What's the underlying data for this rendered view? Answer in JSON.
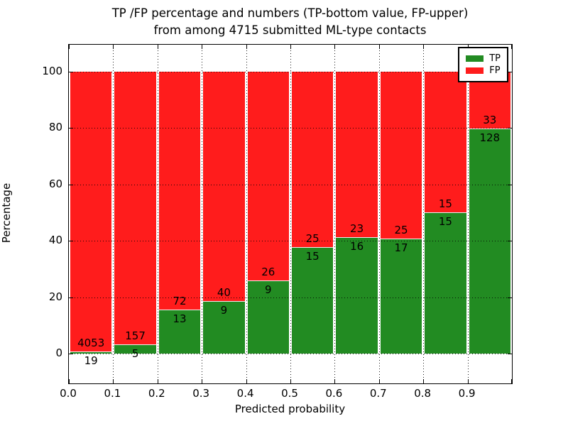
{
  "chart": {
    "title_line1": "TP /FP percentage and numbers (TP-bottom value, FP-upper)",
    "title_line2": "from among 4715 submitted ML-type contacts",
    "xlabel": "Predicted probability",
    "ylabel": "Percentage"
  },
  "chart_data": {
    "type": "bar",
    "stacked": true,
    "normalization": "each bin stacked to 100 percent; counts shown as labels (TP bottom, FP upper)",
    "title": "TP /FP percentage and numbers (TP-bottom value, FP-upper)\nfrom among 4715 submitted ML-type contacts",
    "xlabel": "Predicted probability",
    "ylabel": "Percentage",
    "bin_edges": [
      0.0,
      0.1,
      0.2,
      0.3,
      0.4,
      0.5,
      0.6,
      0.7,
      0.8,
      0.9,
      1.0
    ],
    "x_tick_labels": [
      "0.0",
      "0.1",
      "0.2",
      "0.3",
      "0.4",
      "0.5",
      "0.6",
      "0.7",
      "0.8",
      "0.9"
    ],
    "y_ticks": [
      0,
      20,
      40,
      60,
      80,
      100
    ],
    "y_tick_labels": [
      "0",
      "20",
      "40",
      "60",
      "80",
      "100"
    ],
    "xlim": [
      0.0,
      1.0
    ],
    "ylim": [
      -10.6,
      109.6
    ],
    "grid": true,
    "grid_linestyle": "dotted",
    "legend": {
      "position": "upper right",
      "entries": [
        "TP",
        "FP"
      ]
    },
    "series": [
      {
        "name": "TP",
        "color": "#228b22",
        "values": [
          19,
          5,
          13,
          9,
          9,
          15,
          16,
          17,
          15,
          128
        ]
      },
      {
        "name": "FP",
        "color": "#ff1c1c",
        "values": [
          4053,
          157,
          72,
          40,
          26,
          25,
          23,
          25,
          15,
          33
        ]
      }
    ]
  }
}
